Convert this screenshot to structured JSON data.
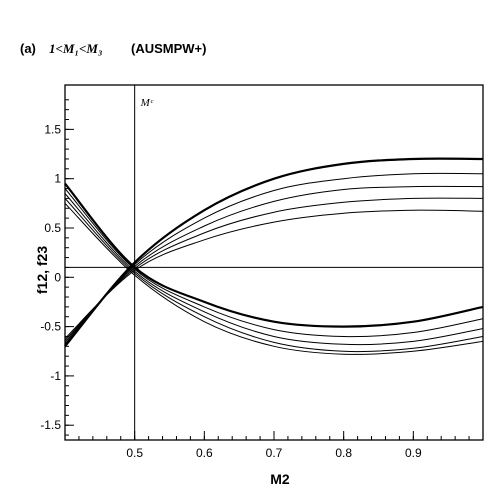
{
  "chart_data": {
    "type": "line",
    "title_prefix": "(a)",
    "title_math": "1<M₁<M₃",
    "title_suffix": "(AUSMPW+)",
    "xlabel": "M2",
    "ylabel": "f12, f23",
    "xlim": [
      0.4,
      1.0
    ],
    "ylim": [
      -1.65,
      1.95
    ],
    "xticks": [
      0.5,
      0.6,
      0.7,
      0.8,
      0.9
    ],
    "xtick_labels": [
      "0.5",
      "0.6",
      "0.7",
      "0.8",
      "0.9"
    ],
    "yticks": [
      -1.5,
      -1,
      -0.5,
      0,
      0.5,
      1,
      1.5
    ],
    "ytick_labels": [
      "-1.5",
      "-1",
      "-0.5",
      "0",
      "0.5",
      "1",
      "1.5"
    ],
    "vline_x": 0.5,
    "vline_label": "Mᶜ",
    "hline_y": 0.1,
    "families": [
      {
        "name": "f12",
        "x": [
          0.4,
          0.5,
          0.6,
          0.7,
          0.8,
          0.9,
          1.0
        ],
        "series": [
          {
            "values": [
              -0.7,
              0.15,
              0.68,
              1.0,
              1.15,
              1.2,
              1.2
            ]
          },
          {
            "values": [
              -0.68,
              0.13,
              0.6,
              0.88,
              1.0,
              1.05,
              1.05
            ]
          },
          {
            "values": [
              -0.66,
              0.11,
              0.52,
              0.77,
              0.89,
              0.92,
              0.92
            ]
          },
          {
            "values": [
              -0.64,
              0.09,
              0.45,
              0.66,
              0.76,
              0.8,
              0.8
            ]
          },
          {
            "values": [
              -0.62,
              0.07,
              0.38,
              0.56,
              0.65,
              0.68,
              0.67
            ]
          }
        ]
      },
      {
        "name": "f23",
        "x": [
          0.4,
          0.5,
          0.6,
          0.7,
          0.8,
          0.9,
          1.0
        ],
        "series": [
          {
            "values": [
              0.95,
              0.1,
              -0.25,
              -0.45,
              -0.5,
              -0.45,
              -0.3
            ]
          },
          {
            "values": [
              0.9,
              0.08,
              -0.3,
              -0.53,
              -0.6,
              -0.56,
              -0.42
            ]
          },
          {
            "values": [
              0.85,
              0.06,
              -0.35,
              -0.6,
              -0.68,
              -0.65,
              -0.52
            ]
          },
          {
            "values": [
              0.8,
              0.04,
              -0.4,
              -0.66,
              -0.75,
              -0.72,
              -0.6
            ]
          },
          {
            "values": [
              0.75,
              0.02,
              -0.45,
              -0.7,
              -0.78,
              -0.75,
              -0.65
            ]
          }
        ]
      }
    ]
  }
}
